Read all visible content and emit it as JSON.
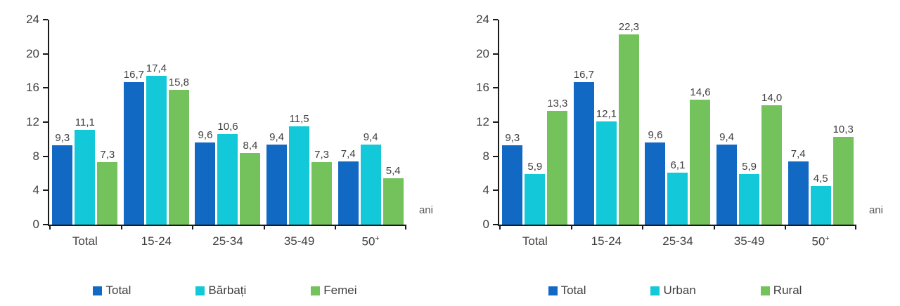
{
  "page": {
    "background": "#ffffff"
  },
  "colors": {
    "series_blue": "#1269C4",
    "series_cyan": "#12C8D9",
    "series_green": "#74C25C",
    "axis_line": "#1a1a1a",
    "tick_text": "#404040",
    "value_text": "#404040",
    "unit_text": "#595959"
  },
  "chart_data": [
    {
      "type": "bar",
      "title": "",
      "categories": [
        "Total",
        "15-24",
        "25-34",
        "35-49",
        "50⁺"
      ],
      "series": [
        {
          "name": "Total",
          "color": "#1269C4",
          "values": [
            9.3,
            16.7,
            9.6,
            9.4,
            7.4
          ]
        },
        {
          "name": "Bărbați",
          "color": "#12C8D9",
          "values": [
            11.1,
            17.4,
            10.6,
            11.5,
            9.4
          ]
        },
        {
          "name": "Femei",
          "color": "#74C25C",
          "values": [
            7.3,
            15.8,
            8.4,
            7.3,
            5.4
          ]
        }
      ],
      "xlabel": "",
      "ylabel": "",
      "ylim": [
        0,
        24
      ],
      "yticks": [
        0,
        4,
        8,
        12,
        16,
        20,
        24
      ],
      "axis_unit_label": "ani",
      "decimal_separator": ",",
      "value_decimals": 1,
      "grid": false,
      "legend_position": "bottom"
    },
    {
      "type": "bar",
      "title": "",
      "categories": [
        "Total",
        "15-24",
        "25-34",
        "35-49",
        "50⁺"
      ],
      "series": [
        {
          "name": "Total",
          "color": "#1269C4",
          "values": [
            9.3,
            16.7,
            9.6,
            9.4,
            7.4
          ]
        },
        {
          "name": "Urban",
          "color": "#12C8D9",
          "values": [
            5.9,
            12.1,
            6.1,
            5.9,
            4.5
          ]
        },
        {
          "name": "Rural",
          "color": "#74C25C",
          "values": [
            13.3,
            22.3,
            14.6,
            14.0,
            10.3
          ]
        }
      ],
      "xlabel": "",
      "ylabel": "",
      "ylim": [
        0,
        24
      ],
      "yticks": [
        0,
        4,
        8,
        12,
        16,
        20,
        24
      ],
      "axis_unit_label": "ani",
      "decimal_separator": ",",
      "value_decimals": 1,
      "grid": false,
      "legend_position": "bottom"
    }
  ]
}
